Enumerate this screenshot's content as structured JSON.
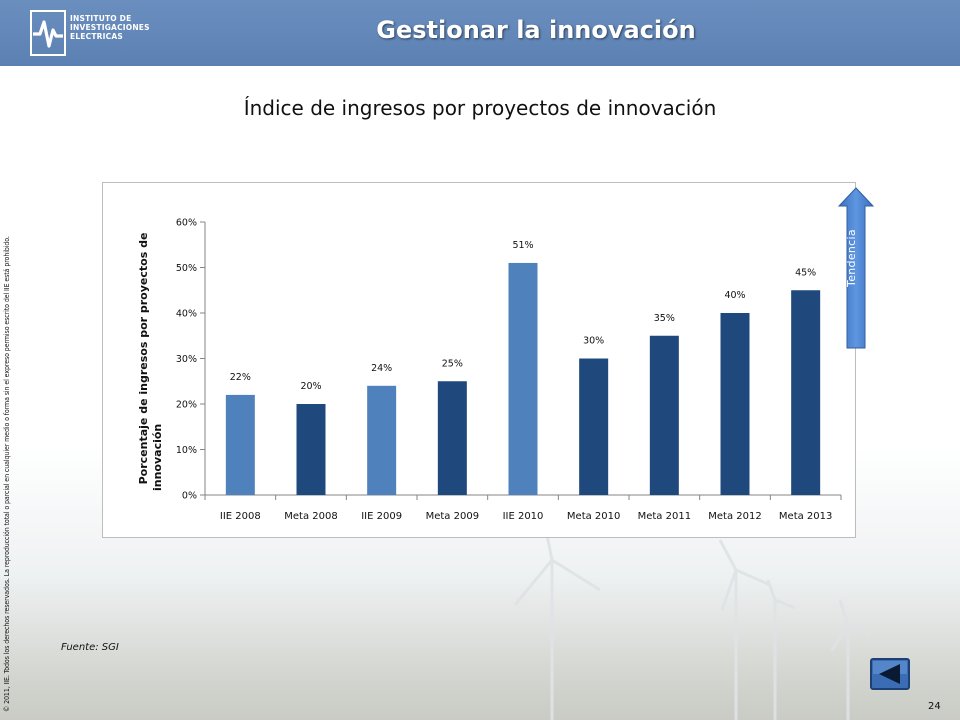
{
  "header": {
    "title": "Gestionar la innovación",
    "logo_lines": [
      "INSTITUTO DE",
      "INVESTIGACIONES",
      "ELECTRICAS"
    ]
  },
  "side_text": "© 2011, IIE. Todos los derechos reservados. La reproducción total o parcial en cualquier medio o forma sin el expreso permiso escrito del IIE está prohibido.",
  "slide_title": "Índice de ingresos por proyectos de innovación",
  "trend_label": "Tendencia",
  "source": "Fuente: SGI",
  "page_number": "24",
  "colors": {
    "header": "#5b80b2",
    "bar_light": "#4f81bd",
    "bar_dark": "#1f497d",
    "trend_arrow": "#4a7ec9"
  },
  "chart_data": {
    "type": "bar",
    "title": "",
    "xlabel": "",
    "ylabel": "Porcentaje de ingresos por proyectos de innovación",
    "ylim": [
      0,
      60
    ],
    "yticks": [
      "0%",
      "10%",
      "20%",
      "30%",
      "40%",
      "50%",
      "60%"
    ],
    "grid": false,
    "categories": [
      "IIE 2008",
      "Meta 2008",
      "IIE 2009",
      "Meta 2009",
      "IIE 2010",
      "Meta 2010",
      "Meta 2011",
      "Meta 2012",
      "Meta 2013"
    ],
    "values": [
      22,
      20,
      24,
      25,
      51,
      30,
      35,
      40,
      45
    ],
    "labels": [
      "22%",
      "20%",
      "24%",
      "25%",
      "51%",
      "30%",
      "35%",
      "40%",
      "45%"
    ],
    "bar_color_group": [
      "light",
      "dark",
      "light",
      "dark",
      "light",
      "dark",
      "dark",
      "dark",
      "dark"
    ]
  }
}
